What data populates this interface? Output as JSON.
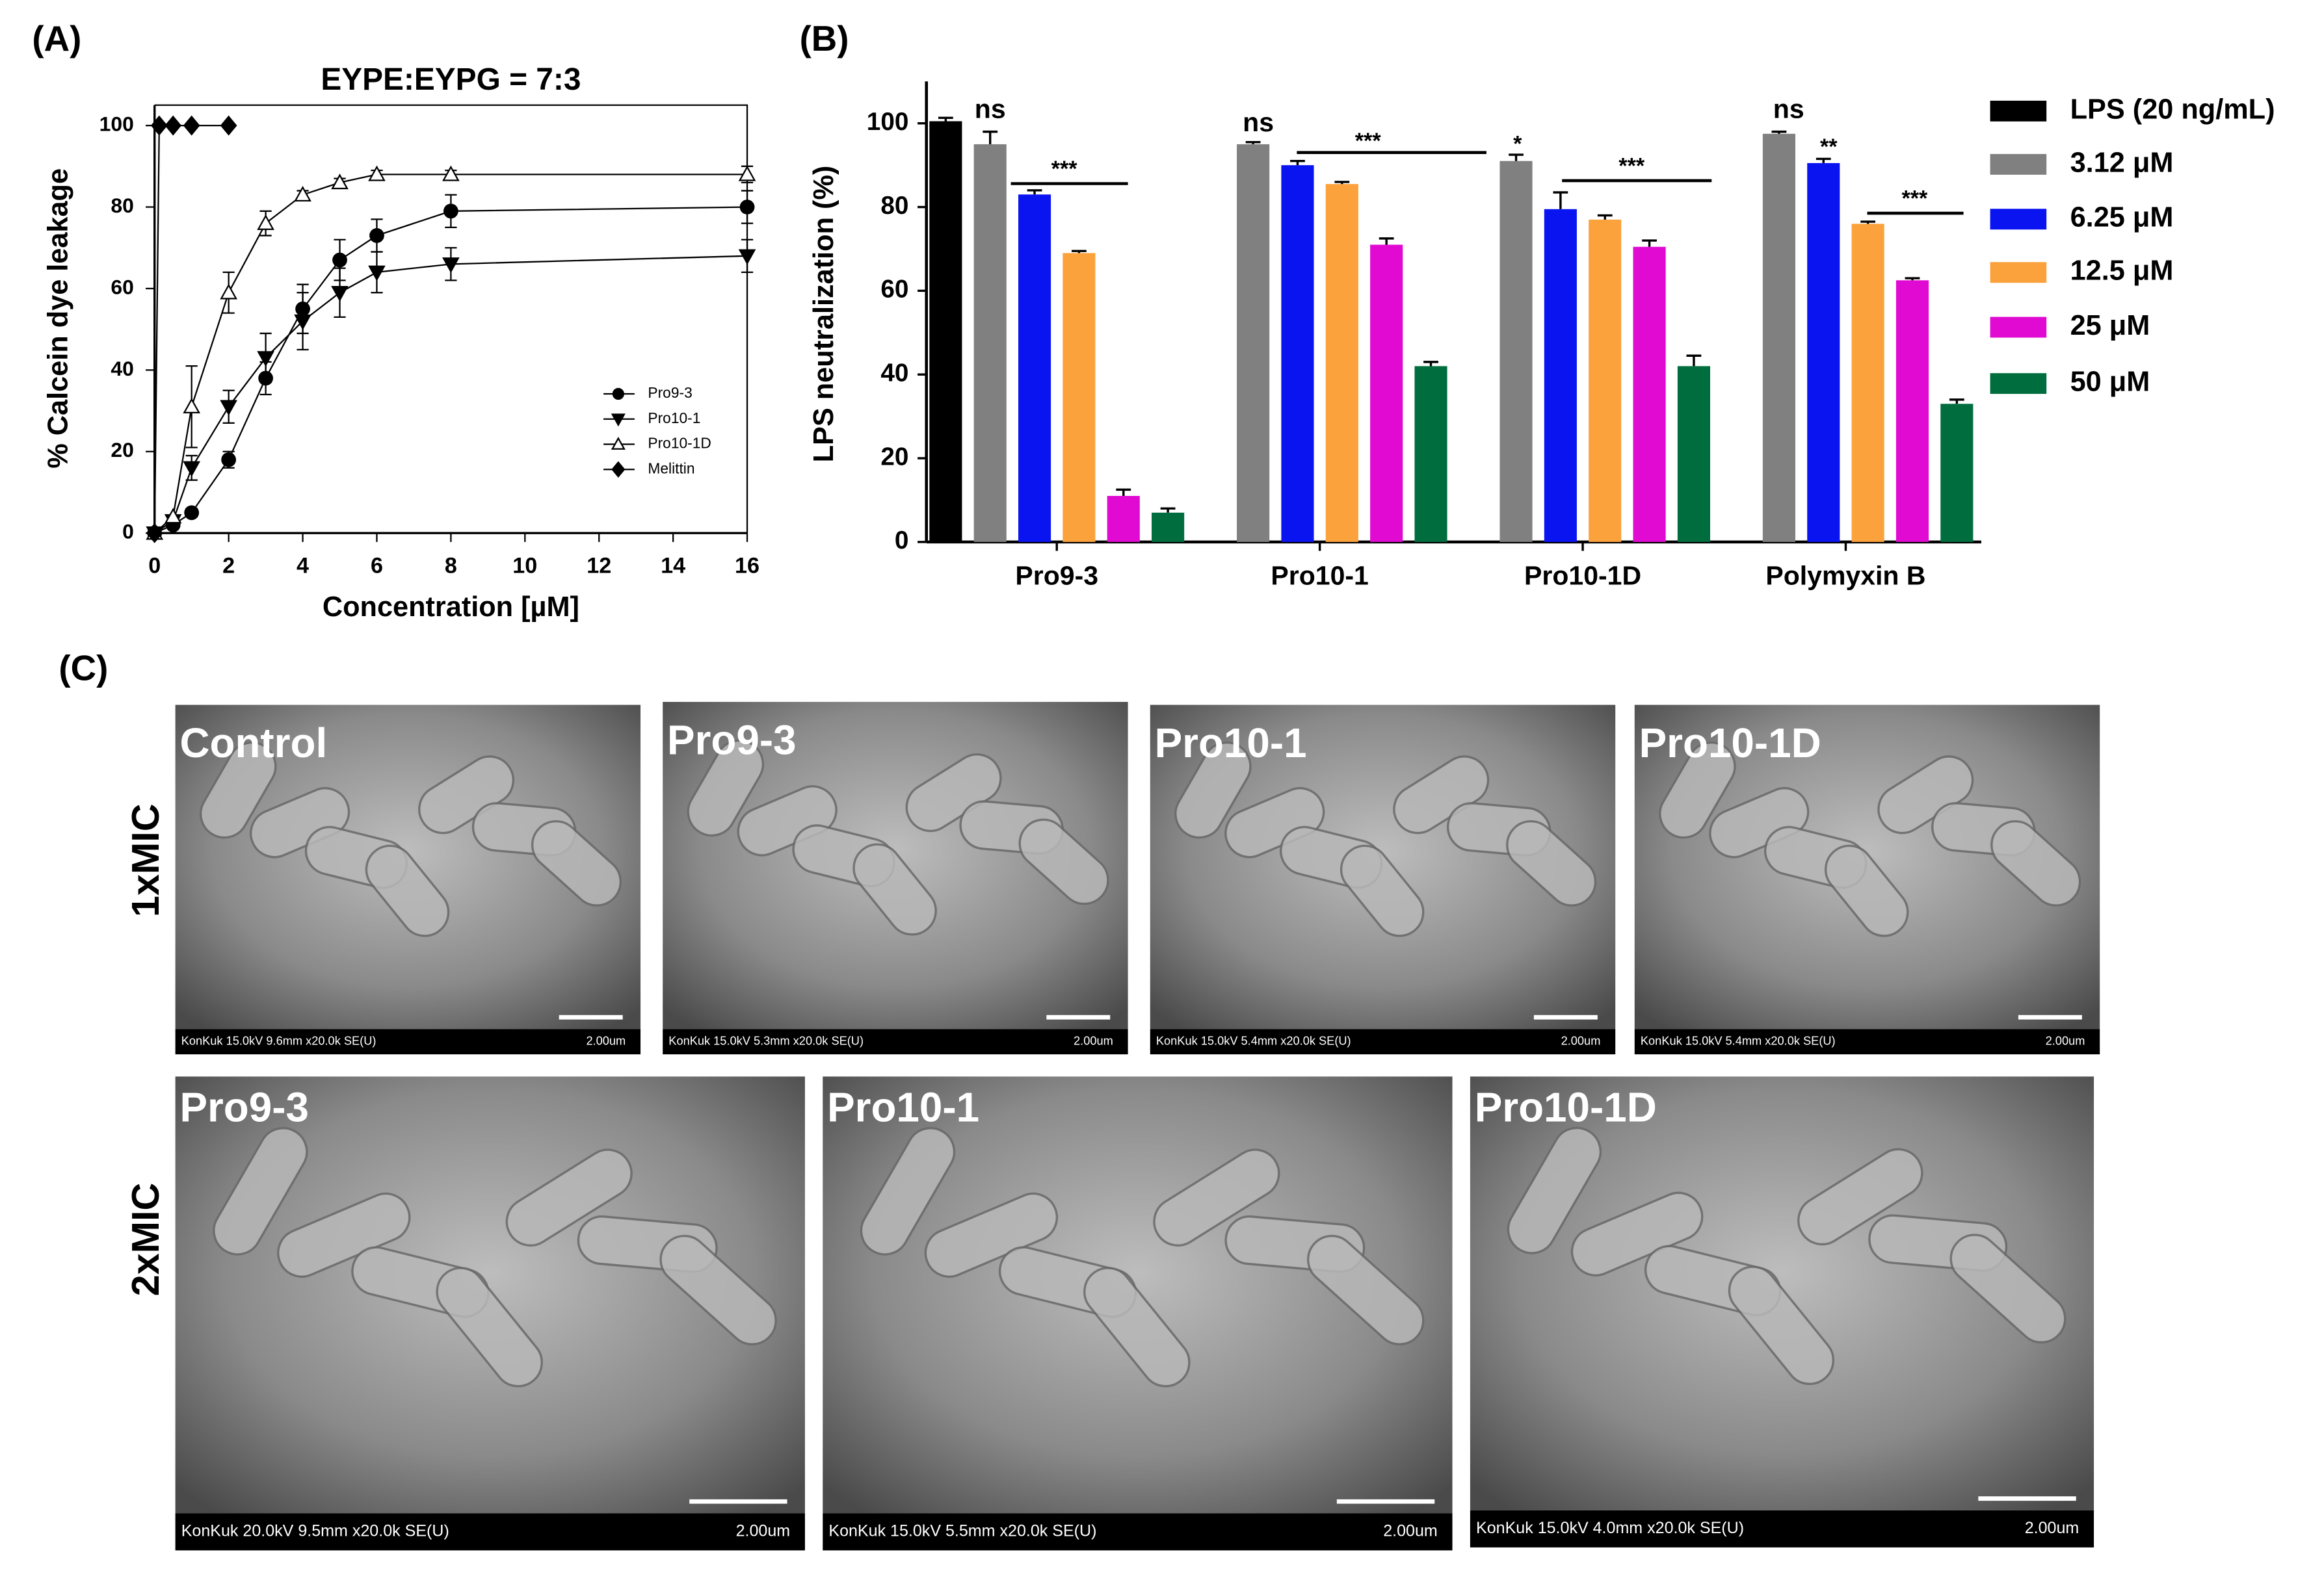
{
  "chart_data": [
    {
      "type": "line",
      "panel": "(A)",
      "title": "EYPE:EYPG = 7:3",
      "x_label": "Concentration [µM]",
      "y_label": "% Calcein dye leakage",
      "xlim": [
        0,
        16
      ],
      "xticks": [
        0,
        2,
        4,
        6,
        8,
        10,
        12,
        14,
        16
      ],
      "ylim": [
        0,
        105
      ],
      "yticks": [
        0,
        20,
        40,
        60,
        80,
        100
      ],
      "series": [
        {
          "name": "Pro9-3",
          "marker": "circle",
          "color": "#000000",
          "x": [
            0,
            0.5,
            1,
            2,
            3,
            4,
            5,
            6,
            8,
            16
          ],
          "values": [
            0,
            2,
            5,
            18,
            38,
            55,
            67,
            73,
            79,
            80
          ],
          "errors": [
            0,
            0,
            1,
            2,
            4,
            6,
            5,
            4,
            4,
            4
          ]
        },
        {
          "name": "Pro10-1",
          "marker": "triangle-down",
          "color": "#000000",
          "x": [
            0,
            0.5,
            1,
            2,
            3,
            4,
            5,
            6,
            8,
            16
          ],
          "values": [
            0,
            3,
            16,
            31,
            43,
            52,
            59,
            64,
            66,
            68
          ],
          "errors": [
            0,
            0,
            3,
            4,
            6,
            7,
            6,
            5,
            4,
            4
          ]
        },
        {
          "name": "Pro10-1D",
          "marker": "triangle-up",
          "color": "#000000",
          "x": [
            0,
            0.5,
            1,
            2,
            3,
            4,
            5,
            6,
            8,
            16
          ],
          "values": [
            0,
            4,
            31,
            59,
            76,
            83,
            86,
            88,
            88,
            88
          ],
          "errors": [
            0,
            0,
            10,
            5,
            3,
            1,
            1,
            1,
            1,
            2
          ]
        },
        {
          "name": "Melittin",
          "marker": "diamond",
          "color": "#000000",
          "x": [
            0,
            0.125,
            0.5,
            1,
            2
          ],
          "values": [
            0,
            100,
            100,
            100,
            100
          ],
          "errors": [
            0,
            0,
            0,
            0,
            0
          ]
        }
      ]
    },
    {
      "type": "bar",
      "panel": "(B)",
      "y_label": "LPS neutralization (%)",
      "categories": [
        "Pro9-3",
        "Pro10-1",
        "Pro10-1D",
        "Polymyxin B"
      ],
      "ylim": [
        0,
        110
      ],
      "yticks": [
        0,
        20,
        40,
        60,
        80,
        100
      ],
      "series": [
        {
          "name": "LPS (20 ng/mL)",
          "color": "#000000",
          "values": [
            100.5,
            null,
            null,
            null
          ],
          "errors": [
            0.8,
            null,
            null,
            null
          ]
        },
        {
          "name": "3.12 μM",
          "color": "#808080",
          "values": [
            95,
            95,
            91,
            97.5
          ],
          "errors": [
            3,
            0.5,
            1.5,
            0.5
          ]
        },
        {
          "name": "6.25 μM",
          "color": "#0a14f0",
          "values": [
            83,
            90,
            79.5,
            90.5
          ],
          "errors": [
            1,
            1,
            4,
            1
          ]
        },
        {
          "name": "12.5 μM",
          "color": "#fba23c",
          "values": [
            69,
            85.5,
            77,
            76
          ],
          "errors": [
            0.5,
            0.5,
            1,
            0.5
          ]
        },
        {
          "name": "25 μM",
          "color": "#e10ad2",
          "values": [
            11,
            71,
            70.5,
            62.5
          ],
          "errors": [
            1.5,
            1.5,
            1.5,
            0.5
          ]
        },
        {
          "name": "50 μM",
          "color": "#006d3f",
          "values": [
            7,
            42,
            42,
            33
          ],
          "errors": [
            1,
            1,
            2.5,
            1
          ]
        }
      ],
      "annotations": [
        "ns",
        "***",
        "ns",
        "***",
        "*",
        "***",
        "ns",
        "**",
        "***"
      ]
    }
  ],
  "panel_c": {
    "label": "(C)",
    "rows": [
      {
        "label": "1xMIC",
        "images": [
          {
            "title": "Control",
            "caption": "KonKuk 15.0kV 9.6mm x20.0k SE(U)",
            "scale": "2.00um"
          },
          {
            "title": "Pro9-3",
            "caption": "KonKuk 15.0kV 5.3mm x20.0k SE(U)",
            "scale": "2.00um"
          },
          {
            "title": "Pro10-1",
            "caption": "KonKuk 15.0kV 5.4mm x20.0k SE(U)",
            "scale": "2.00um"
          },
          {
            "title": "Pro10-1D",
            "caption": "KonKuk 15.0kV 5.4mm x20.0k SE(U)",
            "scale": "2.00um"
          }
        ]
      },
      {
        "label": "2xMIC",
        "images": [
          {
            "title": "Pro9-3",
            "caption": "KonKuk 20.0kV 9.5mm x20.0k SE(U)",
            "scale": "2.00um"
          },
          {
            "title": "Pro10-1",
            "caption": "KonKuk 15.0kV 5.5mm x20.0k SE(U)",
            "scale": "2.00um"
          },
          {
            "title": "Pro10-1D",
            "caption": "KonKuk 15.0kV 4.0mm x20.0k SE(U)",
            "scale": "2.00um"
          }
        ]
      }
    ]
  }
}
